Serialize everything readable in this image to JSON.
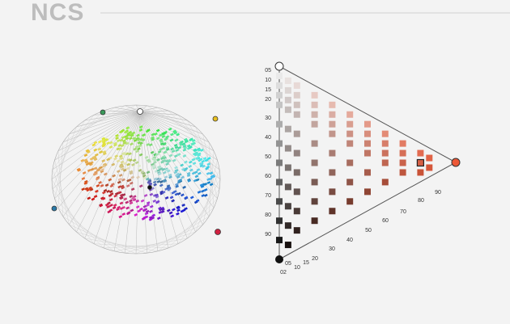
{
  "logo": "NCS",
  "triangle": {
    "blackness_labels": [
      "05",
      "10",
      "15",
      "20",
      "30",
      "40",
      "50",
      "60",
      "70",
      "80",
      "90"
    ],
    "chromaticness_labels": [
      "02",
      "05",
      "10",
      "15",
      "20",
      "30",
      "40",
      "50",
      "60",
      "70",
      "80",
      "90"
    ]
  }
}
